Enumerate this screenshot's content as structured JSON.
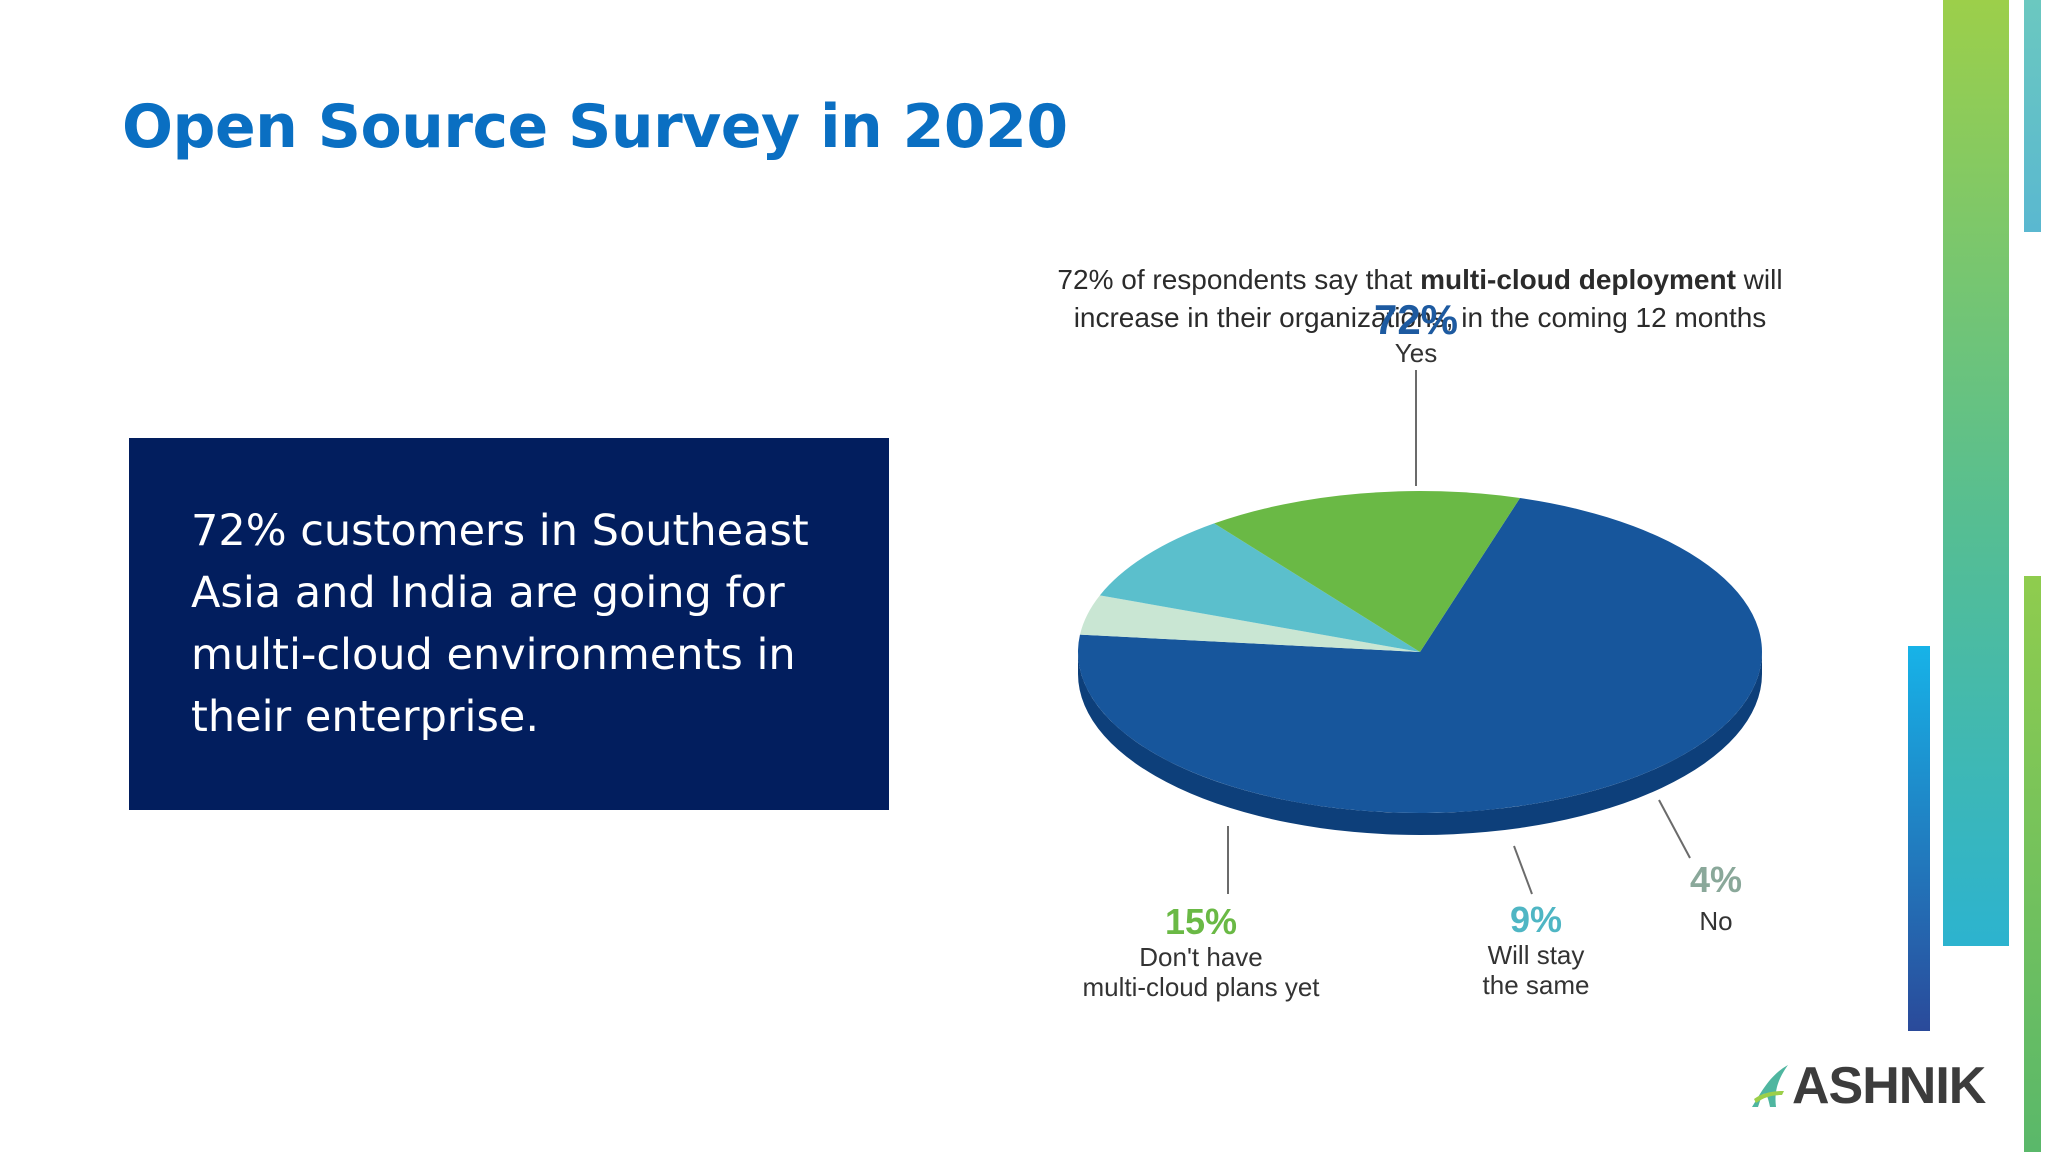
{
  "slide": {
    "title": "Open Source Survey in 2020",
    "callout": "72% customers in Southeast Asia and India are going for multi-cloud environments in their enterprise."
  },
  "chart_data": {
    "type": "pie",
    "title_line1_pre": "72% of respondents say that ",
    "title_line1_bold": "multi-cloud deployment",
    "title_line1_post": " will",
    "title_line2": "increase in their organizations, in the coming 12 months",
    "slices": [
      {
        "name": "Yes",
        "label_lines": [
          "Yes"
        ],
        "value": 72,
        "display": "72%",
        "color": "#17569c",
        "side": "#0d3f7a",
        "label_color": "#1d5aa0"
      },
      {
        "name": "No",
        "label_lines": [
          "No"
        ],
        "value": 4,
        "display": "4%",
        "color": "#c9e6d3",
        "side": "#9fbfab",
        "label_color": "#8aa89a"
      },
      {
        "name": "Will stay the same",
        "label_lines": [
          "Will stay",
          "the same"
        ],
        "value": 9,
        "display": "9%",
        "color": "#5bbfcc",
        "side": "#3f97a3",
        "label_color": "#4fb6c4"
      },
      {
        "name": "Don't have multi-cloud plans yet",
        "label_lines": [
          "Don't have",
          "multi-cloud plans yet"
        ],
        "value": 15,
        "display": "15%",
        "color": "#6ab945",
        "side": "#4a8a2e",
        "label_color": "#6ab945"
      }
    ]
  },
  "logo": {
    "text": "ASHNIK",
    "accent": "#4fb6a0"
  }
}
